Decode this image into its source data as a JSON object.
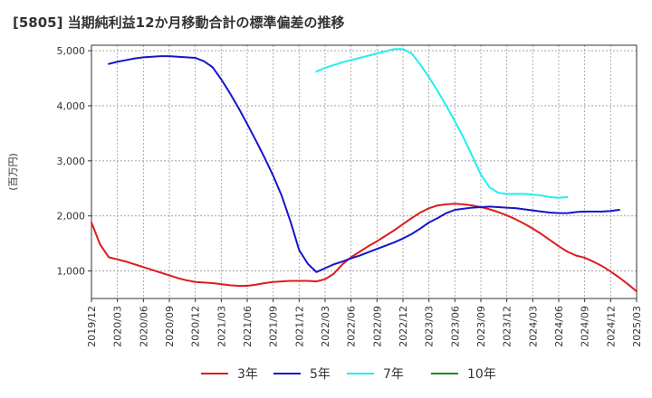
{
  "chart_data": {
    "type": "line",
    "title": "[5805]  当期純利益12か月移動合計の標準偏差の推移",
    "ylabel": "(百万円)",
    "xlabel": "",
    "ylim": [
      500,
      5100
    ],
    "yticks": [
      1000,
      2000,
      3000,
      4000,
      5000
    ],
    "ytick_labels": [
      "1,000",
      "2,000",
      "3,000",
      "4,000",
      "5,000"
    ],
    "x_start": "2019-12",
    "x_end": "2025-03",
    "xtick_labels": [
      "2019/12",
      "2020/03",
      "2020/06",
      "2020/09",
      "2020/12",
      "2021/03",
      "2021/06",
      "2021/09",
      "2021/12",
      "2022/03",
      "2022/06",
      "2022/09",
      "2022/12",
      "2023/03",
      "2023/06",
      "2023/09",
      "2023/12",
      "2024/03",
      "2024/06",
      "2024/09",
      "2024/12",
      "2025/03"
    ],
    "grid": true,
    "legend_position": "bottom",
    "series": [
      {
        "name": "3年",
        "color": "#dd1c1c",
        "start": "2019-12",
        "values": [
          1880,
          1480,
          1250,
          1210,
          1170,
          1120,
          1070,
          1020,
          970,
          920,
          870,
          830,
          800,
          790,
          780,
          760,
          740,
          730,
          730,
          750,
          780,
          800,
          810,
          820,
          820,
          820,
          810,
          850,
          950,
          1120,
          1250,
          1350,
          1450,
          1540,
          1640,
          1740,
          1850,
          1960,
          2060,
          2140,
          2190,
          2210,
          2220,
          2210,
          2190,
          2160,
          2120,
          2070,
          2010,
          1940,
          1860,
          1770,
          1670,
          1560,
          1450,
          1350,
          1280,
          1240,
          1170,
          1090,
          990,
          880,
          760,
          630
        ]
      },
      {
        "name": "5年",
        "color": "#1515c8",
        "start": "2020-02",
        "values": [
          4760,
          4800,
          4830,
          4860,
          4880,
          4890,
          4900,
          4900,
          4890,
          4880,
          4870,
          4810,
          4700,
          4480,
          4230,
          3960,
          3670,
          3370,
          3060,
          2730,
          2360,
          1900,
          1380,
          1130,
          980,
          1050,
          1120,
          1170,
          1230,
          1280,
          1340,
          1400,
          1460,
          1520,
          1590,
          1670,
          1770,
          1880,
          1960,
          2050,
          2110,
          2130,
          2150,
          2160,
          2170,
          2160,
          2150,
          2140,
          2120,
          2100,
          2080,
          2060,
          2050,
          2050,
          2070,
          2080,
          2080,
          2080,
          2090,
          2110
        ]
      },
      {
        "name": "7年",
        "color": "#22eeee",
        "start": "2022-02",
        "values": [
          4620,
          4690,
          4740,
          4790,
          4830,
          4870,
          4910,
          4950,
          4990,
          5030,
          5030,
          4950,
          4750,
          4520,
          4270,
          4000,
          3720,
          3420,
          3090,
          2750,
          2520,
          2420,
          2400,
          2400,
          2400,
          2390,
          2370,
          2340,
          2330,
          2340
        ]
      },
      {
        "name": "10年",
        "color": "#1f8a1f",
        "start": "2024-12",
        "values": []
      }
    ]
  }
}
